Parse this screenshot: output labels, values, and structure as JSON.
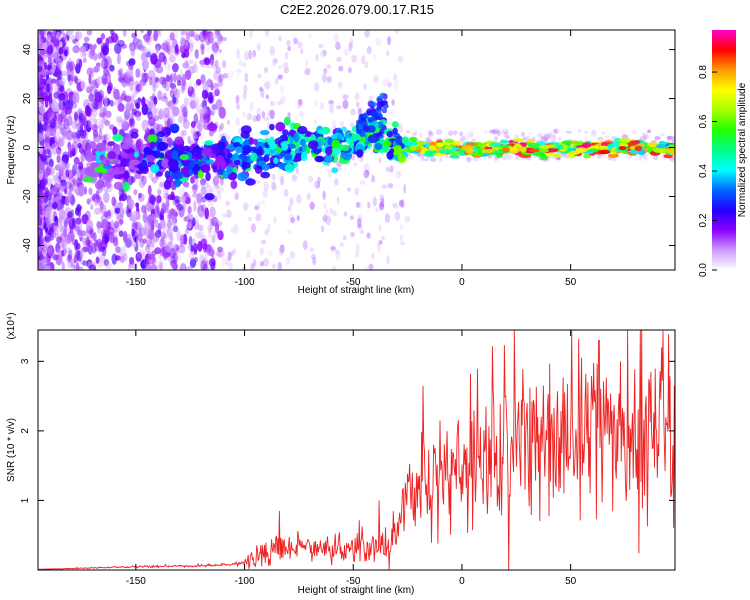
{
  "title": "C2E2.2026.079.00.17.R15",
  "chart_data": [
    {
      "type": "heatmap",
      "xlabel": "Height of straight line (km)",
      "ylabel": "Frequency (Hz)",
      "xlim": [
        -195,
        98
      ],
      "ylim": [
        -50,
        48
      ],
      "xticks": [
        -150,
        -100,
        -50,
        0,
        50
      ],
      "xtick_labels": [
        "-150",
        "-100",
        "-50",
        "0",
        "50"
      ],
      "yticks": [
        40,
        20,
        0,
        -20,
        -40
      ],
      "ytick_labels": [
        "40",
        "20",
        "0",
        "-20",
        "-40"
      ],
      "colorbar": {
        "label": "Normalized spectral amplitude",
        "ticks": [
          0.0,
          0.2,
          0.4,
          0.6,
          0.8
        ],
        "tick_labels": [
          "0.0",
          "0.2",
          "0.4",
          "0.6",
          "0.8"
        ],
        "range": [
          0,
          0.97
        ],
        "colors": [
          "#ffffff",
          "#cc99ff",
          "#8800ff",
          "#2200ff",
          "#0066ff",
          "#00ffff",
          "#00ff88",
          "#22ff00",
          "#aaff00",
          "#ffff00",
          "#ff9900",
          "#ff0000",
          "#ff00cc"
        ]
      },
      "ridge": {
        "x": [
          -170,
          -150,
          -130,
          -110,
          -100,
          -90,
          -80,
          -70,
          -60,
          -50,
          -40,
          -35,
          -30,
          -20,
          0,
          20,
          40,
          60,
          80,
          98
        ],
        "y": [
          -7,
          -3,
          -6,
          -5,
          -4,
          -3,
          -1,
          0,
          1,
          3,
          6,
          3,
          1,
          0,
          -1,
          -0.5,
          0,
          -0.5,
          0,
          -1
        ],
        "amplitude": [
          0.1,
          0.2,
          0.3,
          0.3,
          0.35,
          0.35,
          0.4,
          0.4,
          0.45,
          0.45,
          0.5,
          0.5,
          0.55,
          0.7,
          0.8,
          0.85,
          0.85,
          0.85,
          0.8,
          0.75
        ]
      }
    },
    {
      "type": "line",
      "xlabel": "Height of straight line (km)",
      "ylabel": "SNR (10 * v/v)",
      "multiplier_label": "(x10⁴)",
      "xlim": [
        -195,
        98
      ],
      "ylim": [
        0,
        3.45
      ],
      "xticks": [
        -150,
        -100,
        -50,
        0,
        50
      ],
      "xtick_labels": [
        "-150",
        "-100",
        "-50",
        "0",
        "50"
      ],
      "yticks": [
        1,
        2,
        3
      ],
      "ytick_labels": [
        "1",
        "2",
        "3"
      ],
      "color": "#ee2222",
      "series": [
        {
          "x": [
            -195,
            -180,
            -160,
            -140,
            -120,
            -105,
            -100,
            -95,
            -90,
            -85,
            -80,
            -75,
            -70,
            -60,
            -50,
            -40,
            -33,
            -30,
            -25,
            -20,
            -15,
            -10,
            -5,
            0,
            10,
            20,
            30,
            40,
            50,
            55,
            60,
            65,
            70,
            80,
            90,
            98
          ],
          "y": [
            0.01,
            0.02,
            0.04,
            0.05,
            0.06,
            0.08,
            0.12,
            0.2,
            0.25,
            0.3,
            0.3,
            0.32,
            0.28,
            0.3,
            0.32,
            0.35,
            0.33,
            0.6,
            1.05,
            1.2,
            1.3,
            1.35,
            1.4,
            1.35,
            1.6,
            1.7,
            1.8,
            1.85,
            1.9,
            2.0,
            2.05,
            2.1,
            1.95,
            2.05,
            1.9,
            2.05
          ],
          "peaks": [
            [
              -84,
              0.85
            ],
            [
              -18,
              2.65
            ],
            [
              -13,
              1.8
            ],
            [
              55,
              3.05
            ],
            [
              63,
              3.3
            ],
            [
              82,
              3.45
            ],
            [
              73,
              3.0
            ],
            [
              -38,
              1.0
            ],
            [
              30,
              2.4
            ]
          ]
        }
      ]
    }
  ]
}
